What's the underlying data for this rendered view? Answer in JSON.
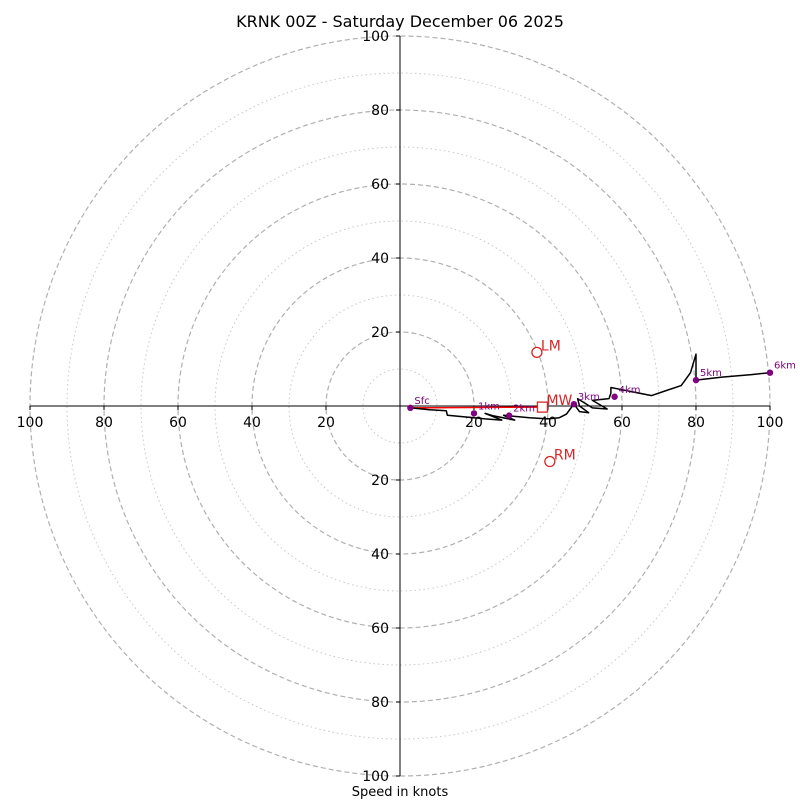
{
  "chart_data": {
    "type": "hodograph",
    "title": "KRNK 00Z - Saturday December 06 2025",
    "xlabel": "Speed in knots",
    "max_speed": 100,
    "major_rings": [
      20,
      40,
      60,
      80,
      100
    ],
    "minor_rings": [
      10,
      30,
      50,
      70,
      90
    ],
    "x_tick_labels": [
      {
        "label": "100",
        "value": -100
      },
      {
        "label": "80",
        "value": -80
      },
      {
        "label": "60",
        "value": -60
      },
      {
        "label": "40",
        "value": -40
      },
      {
        "label": "20",
        "value": -20
      },
      {
        "label": "20",
        "value": 20
      },
      {
        "label": "40",
        "value": 40
      },
      {
        "label": "60",
        "value": 60
      },
      {
        "label": "80",
        "value": 80
      },
      {
        "label": "100",
        "value": 100
      }
    ],
    "y_tick_labels": [
      {
        "label": "100",
        "value": 100
      },
      {
        "label": "80",
        "value": 80
      },
      {
        "label": "60",
        "value": 60
      },
      {
        "label": "40",
        "value": 40
      },
      {
        "label": "20",
        "value": 20
      },
      {
        "label": "20",
        "value": -20
      },
      {
        "label": "40",
        "value": -40
      },
      {
        "label": "60",
        "value": -60
      },
      {
        "label": "80",
        "value": -80
      },
      {
        "label": "100",
        "value": -100
      }
    ],
    "trace": [
      [
        3,
        -0.5
      ],
      [
        8,
        -1
      ],
      [
        12.5,
        -1.3
      ],
      [
        12.8,
        -2.5
      ],
      [
        20,
        -3.2
      ],
      [
        23,
        -3.5
      ],
      [
        27.5,
        -3.8
      ],
      [
        23,
        -2
      ],
      [
        25,
        -2.6
      ],
      [
        31,
        -3.8
      ],
      [
        28,
        -2.5
      ],
      [
        35,
        -3.2
      ],
      [
        40,
        -3.5
      ],
      [
        43,
        -3.2
      ],
      [
        45,
        -2.2
      ],
      [
        46,
        -0.8
      ],
      [
        47,
        0.5
      ],
      [
        48.5,
        -1.5
      ],
      [
        51,
        -1.8
      ],
      [
        48.5,
        0
      ],
      [
        48,
        2
      ],
      [
        52,
        -0.5
      ],
      [
        56,
        -0.8
      ],
      [
        52,
        1.5
      ],
      [
        56.5,
        2
      ],
      [
        57,
        3.5
      ],
      [
        57,
        5
      ],
      [
        62,
        4
      ],
      [
        68,
        2.8
      ],
      [
        72,
        4.2
      ],
      [
        76,
        5.5
      ],
      [
        78.5,
        9
      ],
      [
        80,
        14
      ],
      [
        80,
        7
      ],
      [
        87,
        7.8
      ],
      [
        95,
        8.5
      ],
      [
        100,
        9
      ]
    ],
    "height_points": [
      {
        "label": "Sfc",
        "u": 2.8,
        "v": -0.5
      },
      {
        "label": "1km",
        "u": 20,
        "v": -2
      },
      {
        "label": "2km",
        "u": 29.5,
        "v": -2.6
      },
      {
        "label": "3km",
        "u": 47,
        "v": 0.5
      },
      {
        "label": "4km",
        "u": 58,
        "v": 2.5
      },
      {
        "label": "5km",
        "u": 80,
        "v": 7
      },
      {
        "label": "6km",
        "u": 100,
        "v": 9
      }
    ],
    "storm_motions": [
      {
        "label": "LM",
        "u": 37,
        "v": 14.5,
        "marker": "circle"
      },
      {
        "label": "MW",
        "u": 38.5,
        "v": -0.3,
        "marker": "square"
      },
      {
        "label": "RM",
        "u": 40.5,
        "v": -15,
        "marker": "circle"
      }
    ],
    "shear_vector": {
      "from": "Sfc",
      "to": "MW"
    },
    "colors": {
      "trace": "#000000",
      "height_points": "#800080",
      "height_labels": "#7b007b",
      "storm_markers": "#d62728",
      "shear_vector": "#ff0000",
      "rings": "#b0b0b0",
      "axes": "#000000"
    }
  }
}
